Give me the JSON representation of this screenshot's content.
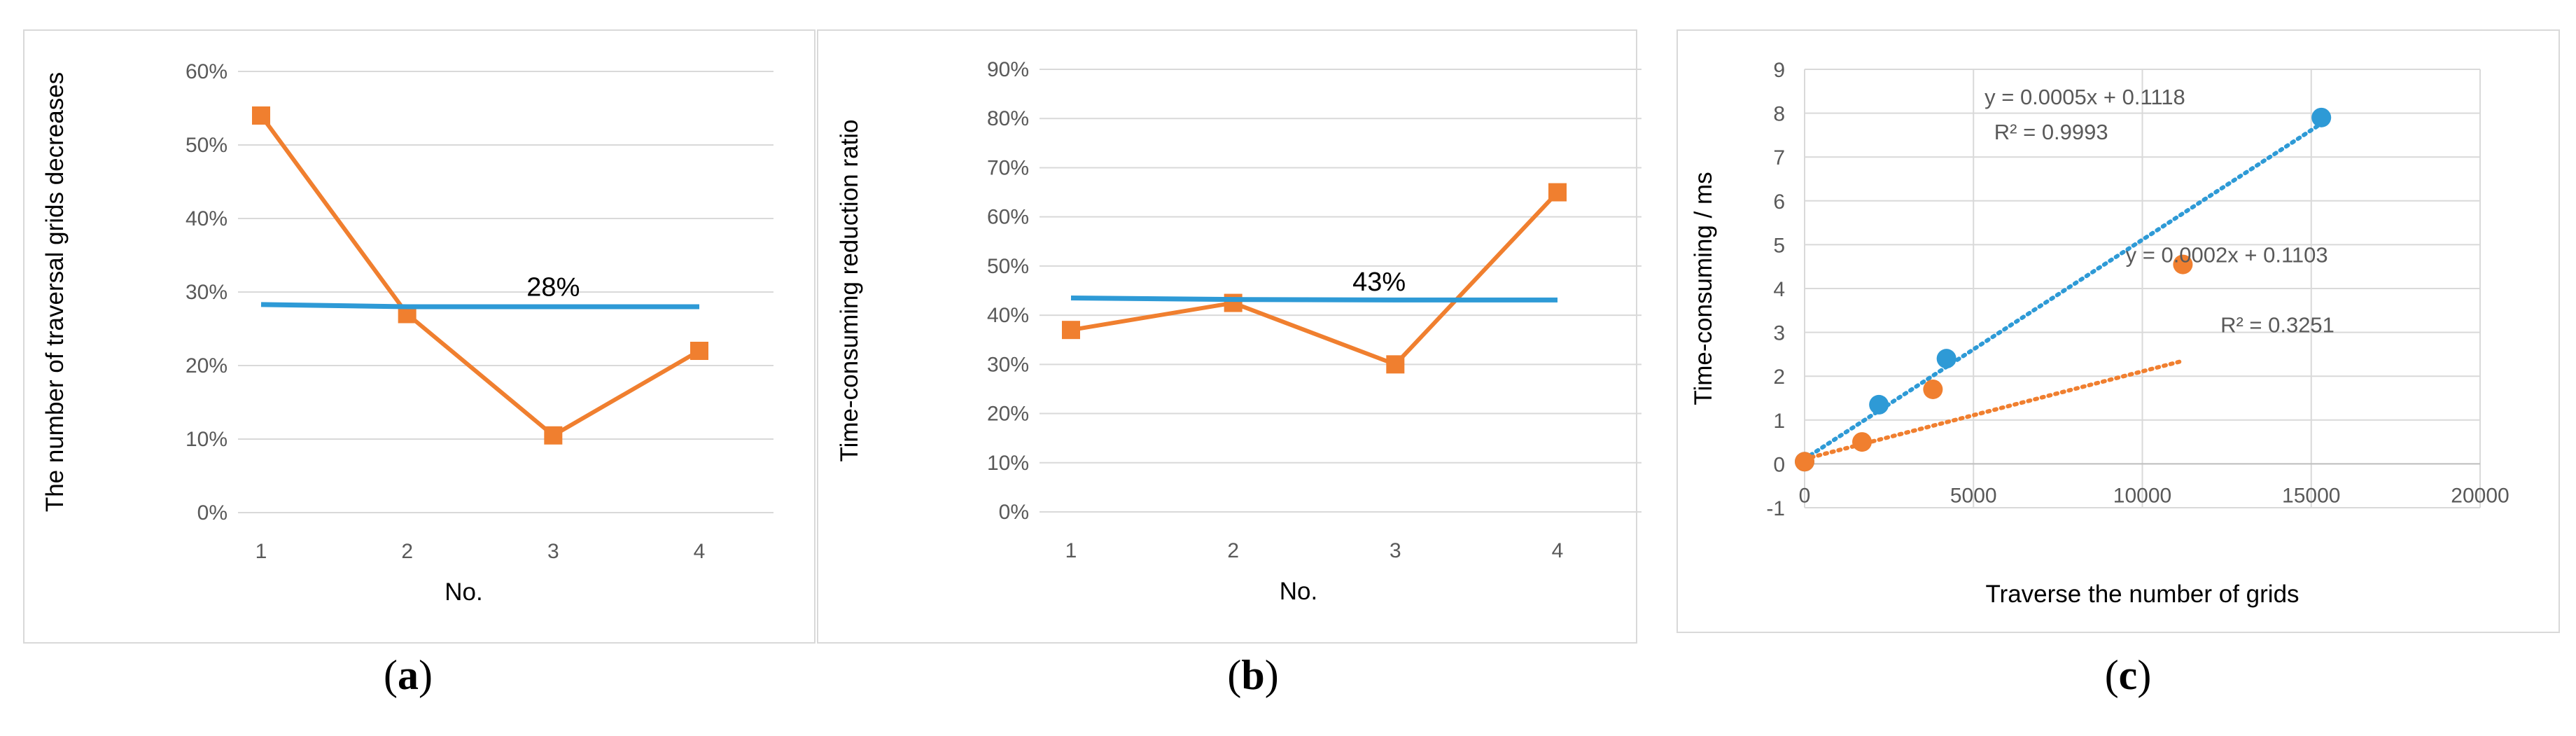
{
  "captions": {
    "a": {
      "open": "(",
      "letter": "a",
      "close": ")"
    },
    "b": {
      "open": "(",
      "letter": "b",
      "close": ")"
    },
    "c": {
      "open": "(",
      "letter": "c",
      "close": ")"
    }
  },
  "colors": {
    "orange": "#F07F2F",
    "blue": "#2E9AD6",
    "grid": "#d9d9d9",
    "text": "#595959"
  },
  "chart_data": [
    {
      "id": "a",
      "type": "line",
      "ylabel": "The number of traversal grids decreases",
      "xlabel": "No.",
      "categories": [
        "1",
        "2",
        "3",
        "4"
      ],
      "ylim": [
        0,
        60
      ],
      "yticks": [
        0,
        10,
        20,
        30,
        40,
        50,
        60
      ],
      "ytick_labels": [
        "0%",
        "10%",
        "20%",
        "30%",
        "40%",
        "50%",
        "60%"
      ],
      "grid": true,
      "series": [
        {
          "values": [
            54,
            27,
            10.5,
            22
          ],
          "color": "orange",
          "marker": "square"
        },
        {
          "values": [
            28.3,
            28,
            28,
            28
          ],
          "color": "blue",
          "marker": "none"
        }
      ],
      "annotations": [
        {
          "text": "28%",
          "x": 3,
          "y": 29.5
        }
      ]
    },
    {
      "id": "b",
      "type": "line",
      "ylabel": "Time-consuming reduction ratio",
      "xlabel": "No.",
      "categories": [
        "1",
        "2",
        "3",
        "4"
      ],
      "ylim": [
        0,
        90
      ],
      "yticks": [
        0,
        10,
        20,
        30,
        40,
        50,
        60,
        70,
        80,
        90
      ],
      "ytick_labels": [
        "0%",
        "10%",
        "20%",
        "30%",
        "40%",
        "50%",
        "60%",
        "70%",
        "80%",
        "90%"
      ],
      "grid": true,
      "series": [
        {
          "values": [
            37,
            42.5,
            30,
            65
          ],
          "color": "orange",
          "marker": "square"
        },
        {
          "values": [
            43.5,
            43.2,
            43.1,
            43.1
          ],
          "color": "blue",
          "marker": "none"
        }
      ],
      "annotations": [
        {
          "text": "43%",
          "x": 2.9,
          "y": 45
        }
      ]
    },
    {
      "id": "c",
      "type": "scatter",
      "ylabel": "Time-consuming / ms",
      "xlabel": "Traverse the number of grids",
      "xlim": [
        0,
        20000
      ],
      "ylim": [
        -1,
        9
      ],
      "xticks": [
        0,
        5000,
        10000,
        15000,
        20000
      ],
      "yticks": [
        -1,
        0,
        1,
        2,
        3,
        4,
        5,
        6,
        7,
        8,
        9
      ],
      "grid": true,
      "series": [
        {
          "points": [
            [
              0,
              0.05
            ],
            [
              2200,
              1.35
            ],
            [
              4200,
              2.4
            ],
            [
              15300,
              7.9
            ]
          ],
          "color": "blue",
          "trendline": {
            "slope": 0.0005,
            "intercept": 0.1118,
            "x_range": [
              0,
              15300
            ]
          }
        },
        {
          "points": [
            [
              0,
              0.05
            ],
            [
              1700,
              0.5
            ],
            [
              3800,
              1.7
            ],
            [
              11200,
              4.55
            ]
          ],
          "color": "orange",
          "trendline": {
            "slope": 0.0002,
            "intercept": 0.1103,
            "x_range": [
              0,
              11200
            ]
          }
        }
      ],
      "annotations": [
        {
          "text": "y = 0.0005x + 0.1118",
          "x": 8300,
          "y": 8.2
        },
        {
          "text": "R² = 0.9993",
          "x": 7300,
          "y": 7.4
        },
        {
          "text": "y = 0.0002x + 0.1103",
          "x": 12500,
          "y": 4.6
        },
        {
          "text": "R² = 0.3251",
          "x": 14000,
          "y": 3.0
        }
      ]
    }
  ]
}
